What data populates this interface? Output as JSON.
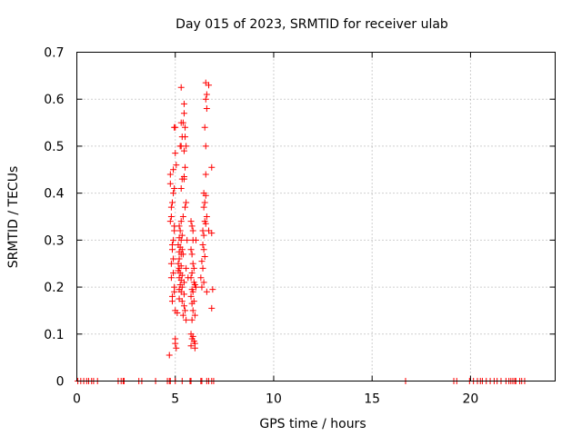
{
  "chart_data": {
    "type": "scatter",
    "title": "Day 015 of 2023, SRMTID for receiver ulab",
    "xlabel": "GPS time / hours",
    "ylabel": "SRMTID / TECUs",
    "xlim": [
      0,
      24.3
    ],
    "ylim": [
      0,
      0.7
    ],
    "x_ticks": [
      0,
      5,
      10,
      15,
      20
    ],
    "x_tick_labels": [
      "0",
      "5",
      "10",
      "15",
      "20"
    ],
    "y_ticks": [
      0,
      0.1,
      0.2,
      0.3,
      0.4,
      0.5,
      0.6,
      0.7
    ],
    "y_tick_labels": [
      "0",
      "0.1",
      "0.2",
      "0.3",
      "0.4",
      "0.5",
      "0.6",
      "0.7"
    ],
    "grid": true,
    "marker": "+",
    "color": "#ff0000",
    "series": [
      {
        "name": "SRMTID",
        "points": [
          [
            0.05,
            0
          ],
          [
            0.2,
            0
          ],
          [
            0.35,
            0
          ],
          [
            0.5,
            0
          ],
          [
            0.6,
            0
          ],
          [
            0.75,
            0
          ],
          [
            0.85,
            0
          ],
          [
            1.05,
            0
          ],
          [
            2.1,
            0
          ],
          [
            2.25,
            0
          ],
          [
            2.35,
            0
          ],
          [
            2.4,
            0
          ],
          [
            3.15,
            0
          ],
          [
            3.3,
            0
          ],
          [
            4.0,
            0
          ],
          [
            4.6,
            0
          ],
          [
            4.7,
            0
          ],
          [
            4.75,
            0
          ],
          [
            5.0,
            0
          ],
          [
            5.35,
            0
          ],
          [
            5.75,
            0
          ],
          [
            5.8,
            0
          ],
          [
            6.3,
            0
          ],
          [
            6.35,
            0
          ],
          [
            6.6,
            0
          ],
          [
            6.7,
            0
          ],
          [
            6.85,
            0
          ],
          [
            6.95,
            0
          ],
          [
            16.7,
            0
          ],
          [
            19.15,
            0
          ],
          [
            19.3,
            0
          ],
          [
            19.95,
            0
          ],
          [
            20.15,
            0
          ],
          [
            20.35,
            0
          ],
          [
            20.5,
            0
          ],
          [
            20.6,
            0
          ],
          [
            20.8,
            0
          ],
          [
            21.0,
            0
          ],
          [
            21.2,
            0
          ],
          [
            21.35,
            0
          ],
          [
            21.55,
            0
          ],
          [
            21.8,
            0
          ],
          [
            21.95,
            0
          ],
          [
            22.05,
            0
          ],
          [
            22.15,
            0
          ],
          [
            22.25,
            0
          ],
          [
            22.3,
            0
          ],
          [
            22.5,
            0
          ],
          [
            22.6,
            0
          ],
          [
            22.75,
            0
          ],
          [
            4.7,
            0.055
          ],
          [
            4.9,
            0.45
          ],
          [
            4.75,
            0.42
          ],
          [
            4.85,
            0.38
          ],
          [
            4.8,
            0.35
          ],
          [
            4.95,
            0.32
          ],
          [
            4.85,
            0.29
          ],
          [
            4.9,
            0.26
          ],
          [
            4.8,
            0.22
          ],
          [
            4.95,
            0.19
          ],
          [
            4.85,
            0.17
          ],
          [
            5.0,
            0.15
          ],
          [
            4.75,
            0.44
          ],
          [
            4.95,
            0.41
          ],
          [
            4.9,
            0.4
          ],
          [
            4.8,
            0.37
          ],
          [
            4.75,
            0.34
          ],
          [
            4.95,
            0.33
          ],
          [
            4.9,
            0.3
          ],
          [
            4.85,
            0.28
          ],
          [
            4.8,
            0.25
          ],
          [
            4.9,
            0.23
          ],
          [
            4.95,
            0.2
          ],
          [
            4.85,
            0.18
          ],
          [
            5.0,
            0.08
          ],
          [
            5.05,
            0.07
          ],
          [
            5.0,
            0.09
          ],
          [
            5.1,
            0.145
          ],
          [
            5.05,
            0.46
          ],
          [
            5.0,
            0.485
          ],
          [
            5.0,
            0.54
          ],
          [
            4.95,
            0.54
          ],
          [
            5.3,
            0.625
          ],
          [
            5.45,
            0.59
          ],
          [
            5.45,
            0.57
          ],
          [
            5.4,
            0.55
          ],
          [
            5.5,
            0.54
          ],
          [
            5.35,
            0.52
          ],
          [
            5.5,
            0.52
          ],
          [
            5.3,
            0.5
          ],
          [
            5.45,
            0.49
          ],
          [
            5.55,
            0.5
          ],
          [
            5.5,
            0.455
          ],
          [
            5.45,
            0.435
          ],
          [
            5.35,
            0.43
          ],
          [
            5.45,
            0.43
          ],
          [
            5.3,
            0.41
          ],
          [
            5.55,
            0.38
          ],
          [
            5.5,
            0.37
          ],
          [
            5.4,
            0.35
          ],
          [
            5.3,
            0.34
          ],
          [
            5.2,
            0.33
          ],
          [
            5.25,
            0.32
          ],
          [
            5.35,
            0.31
          ],
          [
            5.2,
            0.305
          ],
          [
            5.3,
            0.3
          ],
          [
            5.15,
            0.29
          ],
          [
            5.25,
            0.285
          ],
          [
            5.35,
            0.28
          ],
          [
            5.2,
            0.275
          ],
          [
            5.3,
            0.27
          ],
          [
            5.4,
            0.27
          ],
          [
            5.2,
            0.26
          ],
          [
            5.15,
            0.25
          ],
          [
            5.3,
            0.245
          ],
          [
            5.2,
            0.24
          ],
          [
            5.15,
            0.235
          ],
          [
            5.25,
            0.23
          ],
          [
            5.35,
            0.225
          ],
          [
            5.2,
            0.22
          ],
          [
            5.3,
            0.215
          ],
          [
            5.45,
            0.21
          ],
          [
            5.25,
            0.205
          ],
          [
            5.35,
            0.2
          ],
          [
            5.2,
            0.195
          ],
          [
            5.3,
            0.19
          ],
          [
            5.45,
            0.185
          ],
          [
            5.2,
            0.175
          ],
          [
            5.35,
            0.17
          ],
          [
            5.45,
            0.16
          ],
          [
            5.5,
            0.15
          ],
          [
            5.4,
            0.14
          ],
          [
            5.55,
            0.13
          ],
          [
            5.3,
            0.55
          ],
          [
            5.25,
            0.5
          ],
          [
            5.6,
            0.3
          ],
          [
            5.55,
            0.24
          ],
          [
            5.65,
            0.22
          ],
          [
            5.8,
            0.34
          ],
          [
            5.85,
            0.33
          ],
          [
            5.9,
            0.3
          ],
          [
            5.8,
            0.28
          ],
          [
            5.85,
            0.27
          ],
          [
            5.9,
            0.25
          ],
          [
            5.95,
            0.24
          ],
          [
            5.85,
            0.23
          ],
          [
            5.8,
            0.22
          ],
          [
            5.95,
            0.21
          ],
          [
            6.0,
            0.205
          ],
          [
            6.05,
            0.2
          ],
          [
            5.85,
            0.195
          ],
          [
            5.9,
            0.19
          ],
          [
            5.8,
            0.18
          ],
          [
            5.95,
            0.17
          ],
          [
            5.85,
            0.165
          ],
          [
            5.9,
            0.15
          ],
          [
            6.0,
            0.14
          ],
          [
            5.85,
            0.13
          ],
          [
            5.8,
            0.1
          ],
          [
            5.9,
            0.095
          ],
          [
            5.85,
            0.09
          ],
          [
            6.0,
            0.08
          ],
          [
            5.8,
            0.075
          ],
          [
            6.0,
            0.07
          ],
          [
            5.95,
            0.085
          ],
          [
            5.9,
            0.32
          ],
          [
            6.05,
            0.3
          ],
          [
            6.0,
            0.205
          ],
          [
            6.55,
            0.635
          ],
          [
            6.7,
            0.63
          ],
          [
            6.55,
            0.6
          ],
          [
            6.6,
            0.61
          ],
          [
            6.6,
            0.58
          ],
          [
            6.5,
            0.54
          ],
          [
            6.55,
            0.5
          ],
          [
            6.85,
            0.455
          ],
          [
            6.55,
            0.44
          ],
          [
            6.45,
            0.4
          ],
          [
            6.55,
            0.395
          ],
          [
            6.5,
            0.38
          ],
          [
            6.45,
            0.37
          ],
          [
            6.6,
            0.35
          ],
          [
            6.5,
            0.34
          ],
          [
            6.55,
            0.335
          ],
          [
            6.4,
            0.32
          ],
          [
            6.45,
            0.31
          ],
          [
            6.7,
            0.32
          ],
          [
            6.85,
            0.315
          ],
          [
            6.4,
            0.29
          ],
          [
            6.45,
            0.28
          ],
          [
            6.5,
            0.265
          ],
          [
            6.35,
            0.255
          ],
          [
            6.4,
            0.24
          ],
          [
            6.3,
            0.22
          ],
          [
            6.45,
            0.21
          ],
          [
            6.35,
            0.2
          ],
          [
            6.9,
            0.195
          ],
          [
            6.85,
            0.155
          ],
          [
            6.6,
            0.19
          ]
        ]
      }
    ]
  }
}
